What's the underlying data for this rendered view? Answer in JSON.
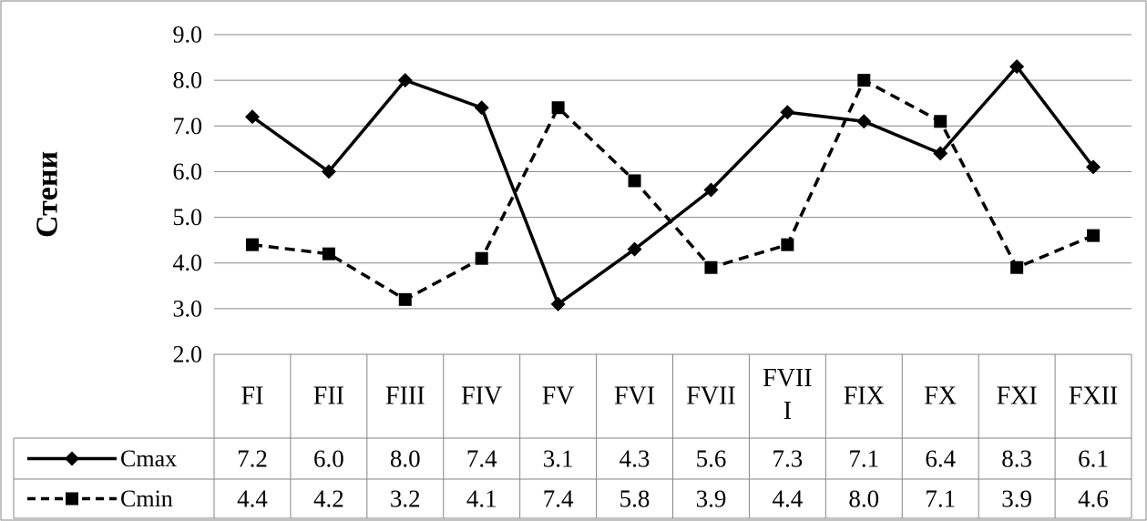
{
  "chart_data": {
    "type": "line",
    "ylabel": "Стени",
    "ylim": [
      2.0,
      9.0
    ],
    "yticks": [
      "2.0",
      "3.0",
      "4.0",
      "5.0",
      "6.0",
      "7.0",
      "8.0",
      "9.0"
    ],
    "grid": true,
    "categories": [
      "FI",
      "FII",
      "FIII",
      "FIV",
      "FV",
      "FVI",
      "FVII",
      "FVIII",
      "FIX",
      "FX",
      "FXI",
      "FXII"
    ],
    "series": [
      {
        "name": "Cmax",
        "line_style": "solid",
        "marker": "diamond",
        "values": [
          7.2,
          6.0,
          8.0,
          7.4,
          3.1,
          4.3,
          5.6,
          7.3,
          7.1,
          6.4,
          8.3,
          6.1
        ],
        "labels": [
          "7.2",
          "6.0",
          "8.0",
          "7.4",
          "3.1",
          "4.3",
          "5.6",
          "7.3",
          "7.1",
          "6.4",
          "8.3",
          "6.1"
        ]
      },
      {
        "name": "Cmin",
        "line_style": "dashed",
        "marker": "square",
        "values": [
          4.4,
          4.2,
          3.2,
          4.1,
          7.4,
          5.8,
          3.9,
          4.4,
          8.0,
          7.1,
          3.9,
          4.6
        ],
        "labels": [
          "4.4",
          "4.2",
          "3.2",
          "4.1",
          "7.4",
          "5.8",
          "3.9",
          "4.4",
          "8.0",
          "7.1",
          "3.9",
          "4.6"
        ]
      }
    ],
    "colors": {
      "line": "#000000",
      "grid": "#868686",
      "border": "#868686"
    }
  }
}
